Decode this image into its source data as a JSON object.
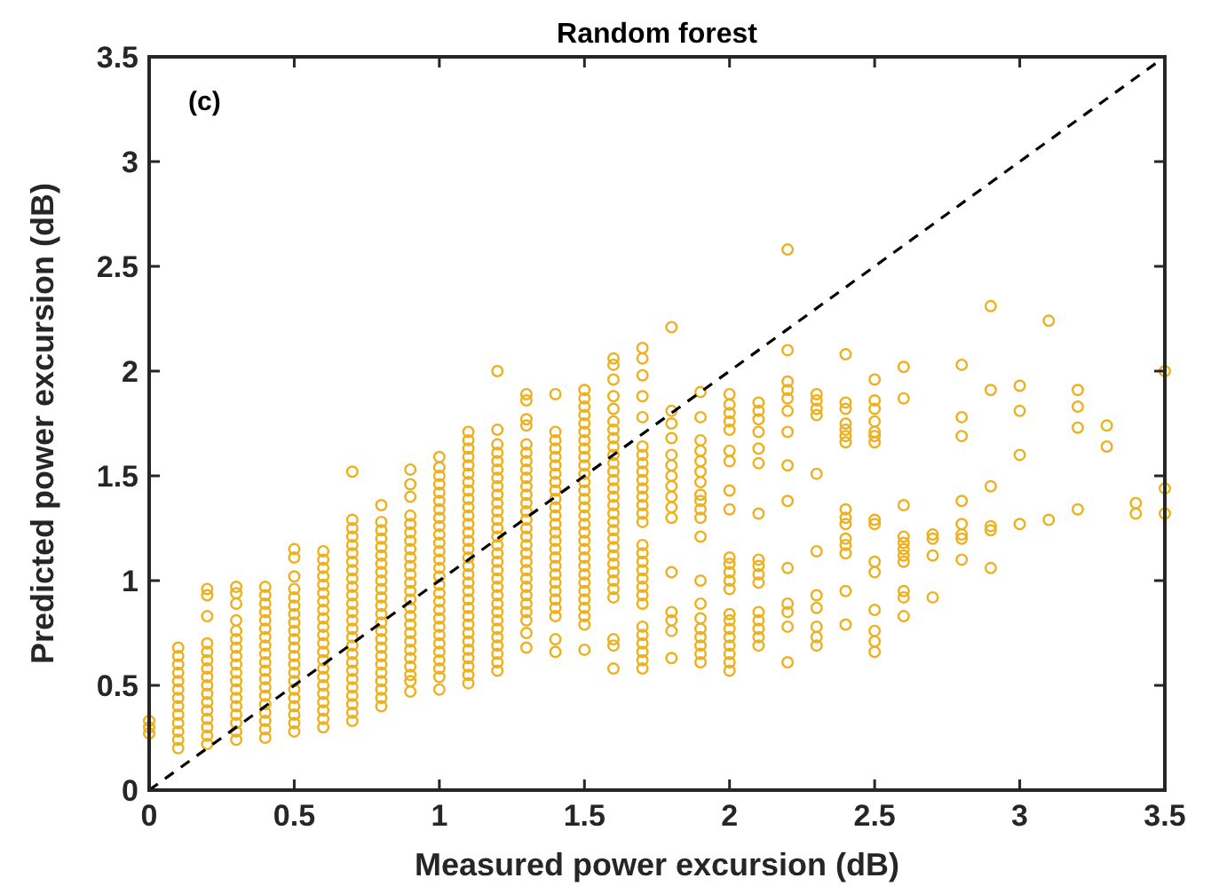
{
  "chart_data": {
    "type": "scatter",
    "title": "Random forest",
    "xlabel": "Measured power excursion (dB)",
    "ylabel": "Predicted power excursion (dB)",
    "annotations": [
      "(c)"
    ],
    "xlim": [
      0,
      3.5
    ],
    "ylim": [
      0,
      3.5
    ],
    "xticks": [
      0,
      0.5,
      1,
      1.5,
      2,
      2.5,
      3,
      3.5
    ],
    "yticks": [
      0,
      0.5,
      1,
      1.5,
      2,
      2.5,
      3,
      3.5
    ],
    "grid": false,
    "marker": "circle",
    "series": [
      {
        "color": "#edb120",
        "x": [
          0,
          0,
          0,
          0.1,
          0.1,
          0.1,
          0.1,
          0.1,
          0.1,
          0.1,
          0.1,
          0.1,
          0.1,
          0.1,
          0.1,
          0.1,
          0.2,
          0.2,
          0.2,
          0.2,
          0.2,
          0.2,
          0.2,
          0.2,
          0.2,
          0.2,
          0.2,
          0.2,
          0.2,
          0.2,
          0.2,
          0.2,
          0.3,
          0.3,
          0.3,
          0.3,
          0.3,
          0.3,
          0.3,
          0.3,
          0.3,
          0.3,
          0.3,
          0.3,
          0.3,
          0.3,
          0.3,
          0.3,
          0.3,
          0.3,
          0.4,
          0.4,
          0.4,
          0.4,
          0.4,
          0.4,
          0.4,
          0.4,
          0.4,
          0.4,
          0.4,
          0.4,
          0.4,
          0.4,
          0.4,
          0.4,
          0.4,
          0.4,
          0.4,
          0.5,
          0.5,
          0.5,
          0.5,
          0.5,
          0.5,
          0.5,
          0.5,
          0.5,
          0.5,
          0.5,
          0.5,
          0.5,
          0.5,
          0.5,
          0.5,
          0.5,
          0.5,
          0.5,
          0.5,
          0.5,
          0.6,
          0.6,
          0.6,
          0.6,
          0.6,
          0.6,
          0.6,
          0.6,
          0.6,
          0.6,
          0.6,
          0.6,
          0.6,
          0.6,
          0.6,
          0.6,
          0.6,
          0.6,
          0.6,
          0.6,
          0.6,
          0.6,
          0.7,
          0.7,
          0.7,
          0.7,
          0.7,
          0.7,
          0.7,
          0.7,
          0.7,
          0.7,
          0.7,
          0.7,
          0.7,
          0.7,
          0.7,
          0.7,
          0.7,
          0.7,
          0.7,
          0.7,
          0.7,
          0.7,
          0.7,
          0.7,
          0.7,
          0.7,
          0.8,
          0.8,
          0.8,
          0.8,
          0.8,
          0.8,
          0.8,
          0.8,
          0.8,
          0.8,
          0.8,
          0.8,
          0.8,
          0.8,
          0.8,
          0.8,
          0.8,
          0.8,
          0.8,
          0.8,
          0.8,
          0.8,
          0.8,
          0.8,
          0.9,
          0.9,
          0.9,
          0.9,
          0.9,
          0.9,
          0.9,
          0.9,
          0.9,
          0.9,
          0.9,
          0.9,
          0.9,
          0.9,
          0.9,
          0.9,
          0.9,
          0.9,
          0.9,
          0.9,
          0.9,
          0.9,
          0.9,
          0.9,
          0.9,
          1,
          1,
          1,
          1,
          1,
          1,
          1,
          1,
          1,
          1,
          1,
          1,
          1,
          1,
          1,
          1,
          1,
          1,
          1,
          1,
          1,
          1,
          1,
          1,
          1,
          1,
          1,
          1,
          1.1,
          1.1,
          1.1,
          1.1,
          1.1,
          1.1,
          1.1,
          1.1,
          1.1,
          1.1,
          1.1,
          1.1,
          1.1,
          1.1,
          1.1,
          1.1,
          1.1,
          1.1,
          1.1,
          1.1,
          1.1,
          1.1,
          1.1,
          1.1,
          1.1,
          1.1,
          1.1,
          1.1,
          1.1,
          1.1,
          1.1,
          1.2,
          1.2,
          1.2,
          1.2,
          1.2,
          1.2,
          1.2,
          1.2,
          1.2,
          1.2,
          1.2,
          1.2,
          1.2,
          1.2,
          1.2,
          1.2,
          1.2,
          1.2,
          1.2,
          1.2,
          1.2,
          1.2,
          1.2,
          1.2,
          1.2,
          1.2,
          1.2,
          1.2,
          1.2,
          1.2,
          1.3,
          1.3,
          1.3,
          1.3,
          1.3,
          1.3,
          1.3,
          1.3,
          1.3,
          1.3,
          1.3,
          1.3,
          1.3,
          1.3,
          1.3,
          1.3,
          1.3,
          1.3,
          1.3,
          1.3,
          1.3,
          1.3,
          1.3,
          1.3,
          1.3,
          1.3,
          1.3,
          1.3,
          1.4,
          1.4,
          1.4,
          1.4,
          1.4,
          1.4,
          1.4,
          1.4,
          1.4,
          1.4,
          1.4,
          1.4,
          1.4,
          1.4,
          1.4,
          1.4,
          1.4,
          1.4,
          1.4,
          1.4,
          1.4,
          1.4,
          1.4,
          1.4,
          1.4,
          1.4,
          1.5,
          1.5,
          1.5,
          1.5,
          1.5,
          1.5,
          1.5,
          1.5,
          1.5,
          1.5,
          1.5,
          1.5,
          1.5,
          1.5,
          1.5,
          1.5,
          1.5,
          1.5,
          1.5,
          1.5,
          1.5,
          1.5,
          1.5,
          1.5,
          1.5,
          1.5,
          1.5,
          1.5,
          1.5,
          1.5,
          1.6,
          1.6,
          1.6,
          1.6,
          1.6,
          1.6,
          1.6,
          1.6,
          1.6,
          1.6,
          1.6,
          1.6,
          1.6,
          1.6,
          1.6,
          1.6,
          1.6,
          1.6,
          1.6,
          1.6,
          1.6,
          1.6,
          1.6,
          1.6,
          1.6,
          1.6,
          1.6,
          1.6,
          1.6,
          1.6,
          1.7,
          1.7,
          1.7,
          1.7,
          1.7,
          1.7,
          1.7,
          1.7,
          1.7,
          1.7,
          1.7,
          1.7,
          1.7,
          1.7,
          1.7,
          1.7,
          1.7,
          1.7,
          1.7,
          1.7,
          1.7,
          1.7,
          1.7,
          1.7,
          1.7,
          1.7,
          1.7,
          1.7,
          1.7,
          1.8,
          1.8,
          1.8,
          1.8,
          1.8,
          1.8,
          1.8,
          1.8,
          1.8,
          1.8,
          1.8,
          1.8,
          1.8,
          1.8,
          1.8,
          1.8,
          1.9,
          1.9,
          1.9,
          1.9,
          1.9,
          1.9,
          1.9,
          1.9,
          1.9,
          1.9,
          1.9,
          1.9,
          1.9,
          1.9,
          1.9,
          1.9,
          1.9,
          1.9,
          1.9,
          1.9,
          2,
          2,
          2,
          2,
          2,
          2,
          2,
          2,
          2,
          2,
          2,
          2,
          2,
          2,
          2,
          2,
          2,
          2,
          2,
          2,
          2,
          2,
          2.1,
          2.1,
          2.1,
          2.1,
          2.1,
          2.1,
          2.1,
          2.1,
          2.1,
          2.1,
          2.1,
          2.1,
          2.1,
          2.1,
          2.1,
          2.1,
          2.2,
          2.2,
          2.2,
          2.2,
          2.2,
          2.2,
          2.2,
          2.2,
          2.2,
          2.2,
          2.2,
          2.2,
          2.2,
          2.2,
          2.3,
          2.3,
          2.3,
          2.3,
          2.3,
          2.3,
          2.3,
          2.3,
          2.3,
          2.3,
          2.3,
          2.4,
          2.4,
          2.4,
          2.4,
          2.4,
          2.4,
          2.4,
          2.4,
          2.4,
          2.4,
          2.4,
          2.4,
          2.4,
          2.4,
          2.4,
          2.5,
          2.5,
          2.5,
          2.5,
          2.5,
          2.5,
          2.5,
          2.5,
          2.5,
          2.5,
          2.5,
          2.5,
          2.5,
          2.5,
          2.5,
          2.6,
          2.6,
          2.6,
          2.6,
          2.6,
          2.6,
          2.6,
          2.6,
          2.6,
          2.6,
          2.6,
          2.7,
          2.7,
          2.7,
          2.7,
          2.8,
          2.8,
          2.8,
          2.8,
          2.8,
          2.8,
          2.8,
          2.8,
          2.9,
          2.9,
          2.9,
          2.9,
          2.9,
          2.9,
          3,
          3,
          3,
          3,
          3.1,
          3.1,
          3.2,
          3.2,
          3.2,
          3.2,
          3.3,
          3.3,
          3.4,
          3.4,
          3.5,
          3.5,
          3.5
        ],
        "values": [
          0.27,
          0.3,
          0.33,
          0.2,
          0.24,
          0.28,
          0.32,
          0.36,
          0.4,
          0.44,
          0.48,
          0.52,
          0.56,
          0.6,
          0.64,
          0.68,
          0.22,
          0.26,
          0.3,
          0.34,
          0.38,
          0.42,
          0.46,
          0.5,
          0.54,
          0.58,
          0.62,
          0.66,
          0.7,
          0.83,
          0.93,
          0.96,
          0.24,
          0.28,
          0.32,
          0.36,
          0.4,
          0.44,
          0.48,
          0.52,
          0.56,
          0.6,
          0.64,
          0.68,
          0.72,
          0.76,
          0.81,
          0.89,
          0.94,
          0.97,
          0.25,
          0.29,
          0.33,
          0.37,
          0.41,
          0.45,
          0.49,
          0.53,
          0.57,
          0.61,
          0.65,
          0.69,
          0.73,
          0.77,
          0.81,
          0.85,
          0.89,
          0.93,
          0.97,
          0.28,
          0.32,
          0.36,
          0.4,
          0.44,
          0.48,
          0.52,
          0.56,
          0.6,
          0.64,
          0.68,
          0.72,
          0.76,
          0.8,
          0.84,
          0.88,
          0.92,
          0.96,
          1.02,
          1.11,
          1.15,
          0.3,
          0.34,
          0.38,
          0.42,
          0.46,
          0.5,
          0.54,
          0.58,
          0.62,
          0.66,
          0.7,
          0.74,
          0.78,
          0.82,
          0.86,
          0.9,
          0.94,
          0.98,
          1.02,
          1.06,
          1.1,
          1.14,
          0.33,
          0.37,
          0.41,
          0.45,
          0.49,
          0.53,
          0.57,
          0.61,
          0.65,
          0.69,
          0.73,
          0.77,
          0.81,
          0.85,
          0.89,
          0.93,
          0.97,
          1.01,
          1.05,
          1.09,
          1.13,
          1.17,
          1.21,
          1.25,
          1.29,
          1.52,
          0.4,
          0.44,
          0.48,
          0.52,
          0.56,
          0.6,
          0.64,
          0.68,
          0.72,
          0.76,
          0.8,
          0.84,
          0.88,
          0.92,
          0.96,
          1.0,
          1.04,
          1.08,
          1.12,
          1.16,
          1.2,
          1.24,
          1.28,
          1.36,
          0.47,
          0.52,
          0.55,
          0.59,
          0.63,
          0.67,
          0.71,
          0.75,
          0.79,
          0.83,
          0.87,
          0.91,
          0.95,
          0.99,
          1.03,
          1.07,
          1.11,
          1.15,
          1.19,
          1.23,
          1.27,
          1.31,
          1.4,
          1.46,
          1.53,
          0.48,
          0.54,
          0.58,
          0.62,
          0.66,
          0.7,
          0.74,
          0.78,
          0.82,
          0.86,
          0.9,
          0.94,
          0.98,
          1.02,
          1.06,
          1.1,
          1.14,
          1.18,
          1.22,
          1.26,
          1.3,
          1.34,
          1.38,
          1.42,
          1.46,
          1.5,
          1.54,
          1.59,
          0.51,
          0.55,
          0.59,
          0.63,
          0.67,
          0.71,
          0.75,
          0.79,
          0.83,
          0.87,
          0.91,
          0.95,
          0.99,
          1.03,
          1.07,
          1.11,
          1.15,
          1.19,
          1.23,
          1.27,
          1.31,
          1.35,
          1.39,
          1.43,
          1.47,
          1.51,
          1.55,
          1.59,
          1.63,
          1.67,
          1.71,
          0.57,
          0.61,
          0.65,
          0.69,
          0.73,
          0.77,
          0.81,
          0.85,
          0.89,
          0.93,
          0.97,
          1.01,
          1.05,
          1.09,
          1.13,
          1.17,
          1.21,
          1.25,
          1.29,
          1.33,
          1.37,
          1.41,
          1.45,
          1.49,
          1.53,
          1.57,
          1.61,
          1.65,
          1.72,
          2.0,
          0.68,
          0.75,
          0.81,
          0.85,
          0.89,
          0.93,
          0.97,
          1.01,
          1.05,
          1.09,
          1.13,
          1.17,
          1.21,
          1.25,
          1.29,
          1.33,
          1.37,
          1.41,
          1.45,
          1.49,
          1.53,
          1.57,
          1.61,
          1.65,
          1.74,
          1.77,
          1.86,
          1.89,
          0.66,
          0.72,
          0.83,
          0.87,
          0.91,
          0.95,
          0.99,
          1.03,
          1.07,
          1.11,
          1.15,
          1.19,
          1.23,
          1.27,
          1.31,
          1.35,
          1.39,
          1.43,
          1.47,
          1.51,
          1.55,
          1.59,
          1.63,
          1.67,
          1.71,
          1.89,
          0.67,
          0.79,
          0.83,
          0.87,
          0.91,
          0.95,
          0.99,
          1.03,
          1.07,
          1.11,
          1.15,
          1.19,
          1.23,
          1.27,
          1.31,
          1.35,
          1.39,
          1.43,
          1.47,
          1.51,
          1.55,
          1.59,
          1.63,
          1.67,
          1.71,
          1.75,
          1.79,
          1.83,
          1.87,
          1.91,
          0.58,
          0.69,
          0.72,
          0.92,
          0.96,
          1.0,
          1.04,
          1.08,
          1.12,
          1.16,
          1.2,
          1.24,
          1.28,
          1.32,
          1.36,
          1.4,
          1.44,
          1.48,
          1.52,
          1.56,
          1.6,
          1.64,
          1.68,
          1.72,
          1.76,
          1.82,
          1.88,
          1.96,
          2.03,
          2.06,
          0.58,
          0.62,
          0.66,
          0.7,
          0.74,
          0.78,
          0.89,
          0.93,
          0.97,
          1.01,
          1.05,
          1.09,
          1.13,
          1.17,
          1.28,
          1.32,
          1.36,
          1.4,
          1.44,
          1.48,
          1.52,
          1.56,
          1.6,
          1.64,
          1.78,
          1.88,
          1.98,
          2.06,
          2.11,
          0.63,
          0.76,
          0.81,
          0.85,
          1.04,
          1.3,
          1.35,
          1.4,
          1.45,
          1.5,
          1.55,
          1.6,
          1.68,
          1.75,
          1.81,
          2.21,
          0.61,
          0.65,
          0.69,
          0.73,
          0.77,
          0.82,
          0.89,
          1.0,
          1.21,
          1.3,
          1.34,
          1.38,
          1.41,
          1.47,
          1.52,
          1.57,
          1.62,
          1.67,
          1.78,
          1.9,
          0.57,
          0.61,
          0.65,
          0.69,
          0.73,
          0.77,
          0.81,
          0.84,
          0.96,
          1.0,
          1.04,
          1.08,
          1.11,
          1.34,
          1.43,
          1.57,
          1.62,
          1.72,
          1.76,
          1.8,
          1.84,
          1.89,
          0.69,
          0.73,
          0.77,
          0.81,
          0.85,
          0.99,
          1.03,
          1.07,
          1.1,
          1.32,
          1.56,
          1.63,
          1.71,
          1.77,
          1.81,
          1.85,
          0.61,
          0.78,
          0.85,
          0.89,
          1.06,
          1.38,
          1.55,
          1.71,
          1.81,
          1.87,
          1.91,
          1.95,
          2.1,
          2.58,
          0.69,
          0.73,
          0.78,
          0.87,
          0.93,
          1.14,
          1.51,
          1.79,
          1.82,
          1.86,
          1.89,
          0.79,
          0.95,
          1.13,
          1.17,
          1.2,
          1.27,
          1.3,
          1.34,
          1.66,
          1.69,
          1.72,
          1.75,
          1.82,
          1.85,
          2.08,
          0.66,
          0.71,
          0.76,
          0.86,
          1.04,
          1.09,
          1.27,
          1.29,
          1.66,
          1.69,
          1.71,
          1.76,
          1.82,
          1.86,
          1.96,
          0.83,
          0.92,
          0.95,
          1.09,
          1.12,
          1.15,
          1.18,
          1.21,
          1.36,
          1.87,
          2.02,
          0.92,
          1.12,
          1.2,
          1.22,
          1.1,
          1.2,
          1.22,
          1.27,
          1.38,
          1.69,
          1.78,
          2.03,
          1.06,
          1.24,
          1.26,
          1.45,
          1.91,
          2.31,
          1.27,
          1.6,
          1.81,
          1.93,
          1.29,
          2.24,
          1.34,
          1.73,
          1.83,
          1.91,
          1.64,
          1.74,
          1.32,
          1.37,
          1.32,
          1.44,
          2.0
        ]
      },
      {
        "type": "line",
        "color": "#000000",
        "line_style": "dashed",
        "marker": "none",
        "x": [
          0,
          3.5
        ],
        "values": [
          0,
          3.5
        ]
      }
    ]
  }
}
